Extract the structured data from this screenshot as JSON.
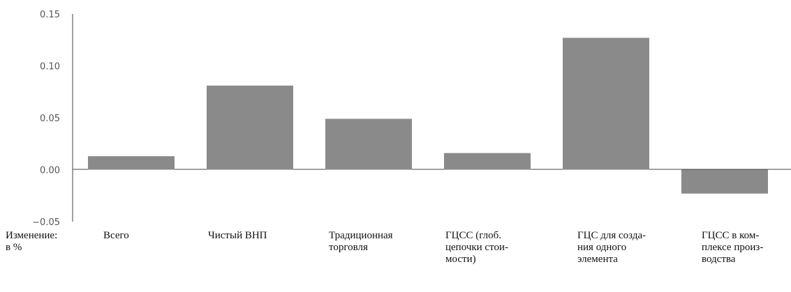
{
  "chart_data": {
    "type": "bar",
    "categories": [
      "Всего",
      "Чистый ВНП",
      "Традиционная\nторговля",
      "ГЦСС (глоб.\nцепочки стои-\nмости)",
      "ГЦС для созда-\nния одного\nэлемента",
      "ГЦСС в ком-\nплексе произ-\nводства"
    ],
    "values": [
      0.013,
      0.081,
      0.049,
      0.016,
      0.127,
      -0.023
    ],
    "row_label": "Изменение:\nв %",
    "yticks": [
      "0.15",
      "0.10",
      "0.05",
      "0.00",
      "−0.05"
    ],
    "ylim": [
      -0.05,
      0.15
    ],
    "bar_color": "#8a8a8a"
  }
}
